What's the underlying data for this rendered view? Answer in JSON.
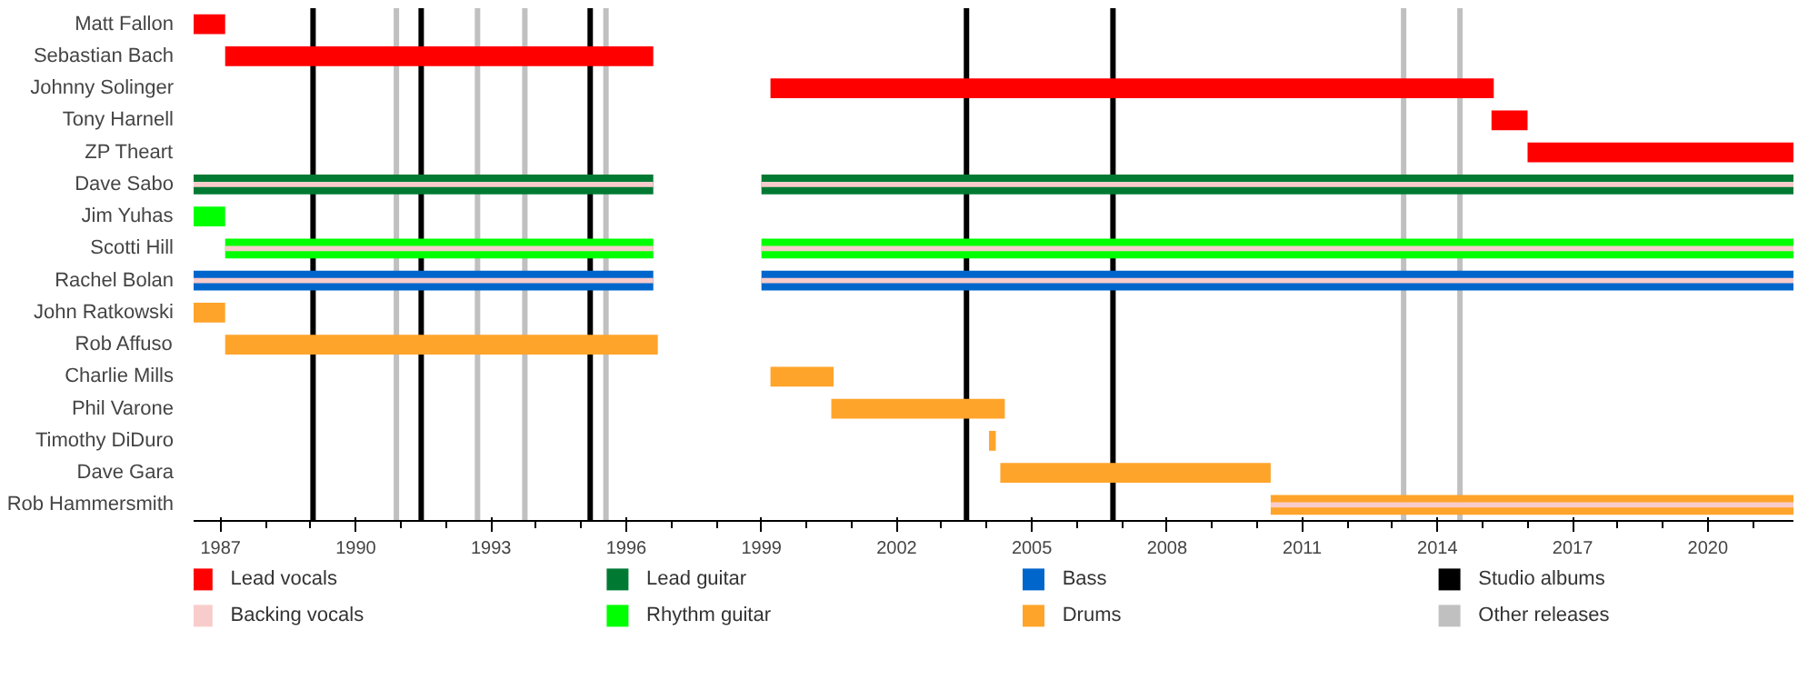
{
  "chart_data": {
    "type": "bar",
    "orientation": "horizontal",
    "categories": [
      "Matt Fallon",
      "Sebastian Bach",
      "Johnny Solinger",
      "Tony Harnell",
      "ZP Theart",
      "Dave Sabo",
      "Jim Yuhas",
      "Scotti Hill",
      "Rachel Bolan",
      "John Ratkowski",
      "Rob Affuso",
      "Charlie Mills",
      "Phil Varone",
      "Timothy DiDuro",
      "Dave Gara",
      "Rob Hammersmith"
    ],
    "xlim": [
      1986.4,
      2021.9
    ],
    "xticks": [
      1987,
      1990,
      1993,
      1996,
      1999,
      2002,
      2005,
      2008,
      2011,
      2014,
      2017,
      2020
    ],
    "legend": "bottom",
    "series": [
      {
        "name": "Lead vocals",
        "color": "#ff0000",
        "base": [
          1986.4,
          1987.1,
          1999.2,
          2015.2,
          2016.0,
          null,
          null,
          null,
          null,
          null,
          null,
          null,
          null,
          null,
          null,
          null
        ],
        "values": [
          0.7,
          9.5,
          16.05,
          0.8,
          5.9,
          null,
          null,
          null,
          null,
          null,
          null,
          null,
          null,
          null,
          null,
          null
        ]
      },
      {
        "name": "Backing vocals",
        "color": "#f9cccc",
        "base": [
          null,
          null,
          null,
          null,
          null,
          1986.4,
          null,
          1987.1,
          1986.4,
          null,
          null,
          null,
          null,
          null,
          null,
          2010.3
        ],
        "values": [
          null,
          null,
          null,
          null,
          null,
          10.2,
          null,
          9.5,
          10.2,
          null,
          null,
          null,
          null,
          null,
          null,
          11.6
        ]
      },
      {
        "color": "#f9cccc",
        "base": [
          null,
          null,
          null,
          null,
          null,
          1999.0,
          null,
          1999.0,
          1999.0,
          null,
          null,
          null,
          null,
          null,
          null,
          null
        ],
        "values": [
          null,
          null,
          null,
          null,
          null,
          22.9,
          null,
          22.9,
          22.9,
          null,
          null,
          null,
          null,
          null,
          null,
          null
        ]
      },
      {
        "name": "Lead guitar",
        "color": "#007a33",
        "base": [
          null,
          null,
          null,
          null,
          null,
          1986.4,
          null,
          null,
          null,
          null,
          null,
          null,
          null,
          null,
          null,
          null
        ],
        "values": [
          null,
          null,
          null,
          null,
          null,
          10.2,
          null,
          null,
          null,
          null,
          null,
          null,
          null,
          null,
          null,
          null
        ]
      },
      {
        "color": "#007a33",
        "base": [
          null,
          null,
          null,
          null,
          null,
          1999.0,
          null,
          null,
          null,
          null,
          null,
          null,
          null,
          null,
          null,
          null
        ],
        "values": [
          null,
          null,
          null,
          null,
          null,
          22.9,
          null,
          null,
          null,
          null,
          null,
          null,
          null,
          null,
          null,
          null
        ]
      },
      {
        "name": "Rhythm guitar",
        "color": "#00ff00",
        "base": [
          null,
          null,
          null,
          null,
          null,
          null,
          1986.4,
          1987.1,
          null,
          null,
          null,
          null,
          null,
          null,
          null,
          null
        ],
        "values": [
          null,
          null,
          null,
          null,
          null,
          null,
          0.7,
          9.5,
          null,
          null,
          null,
          null,
          null,
          null,
          null,
          null
        ]
      },
      {
        "color": "#00ff00",
        "base": [
          null,
          null,
          null,
          null,
          null,
          null,
          null,
          1999.0,
          null,
          null,
          null,
          null,
          null,
          null,
          null,
          null
        ],
        "values": [
          null,
          null,
          null,
          null,
          null,
          null,
          null,
          22.9,
          null,
          null,
          null,
          null,
          null,
          null,
          null,
          null
        ]
      },
      {
        "name": "Bass",
        "color": "#0066cc",
        "base": [
          null,
          null,
          null,
          null,
          null,
          null,
          null,
          null,
          1986.4,
          null,
          null,
          null,
          null,
          null,
          null,
          null
        ],
        "values": [
          null,
          null,
          null,
          null,
          null,
          null,
          null,
          null,
          10.2,
          null,
          null,
          null,
          null,
          null,
          null,
          null
        ]
      },
      {
        "color": "#0066cc",
        "base": [
          null,
          null,
          null,
          null,
          null,
          null,
          null,
          null,
          1999.0,
          null,
          null,
          null,
          null,
          null,
          null,
          null
        ],
        "values": [
          null,
          null,
          null,
          null,
          null,
          null,
          null,
          null,
          22.9,
          null,
          null,
          null,
          null,
          null,
          null,
          null
        ]
      },
      {
        "name": "Drums",
        "color": "#ffa42a",
        "base": [
          null,
          null,
          null,
          null,
          null,
          null,
          null,
          null,
          null,
          1986.4,
          1987.1,
          1999.2,
          2000.55,
          2004.05,
          2004.3,
          2010.3
        ],
        "values": [
          null,
          null,
          null,
          null,
          null,
          null,
          null,
          null,
          null,
          0.7,
          9.6,
          1.4,
          3.85,
          0.15,
          6.0,
          11.6
        ]
      }
    ],
    "ref_lines": [
      {
        "axis": "x",
        "value": 1989.05,
        "label": "Studio albums",
        "color": "#000000"
      },
      {
        "axis": "x",
        "value": 1991.45,
        "color": "#000000"
      },
      {
        "axis": "x",
        "value": 1995.2,
        "color": "#000000"
      },
      {
        "axis": "x",
        "value": 2003.55,
        "color": "#000000"
      },
      {
        "axis": "x",
        "value": 2006.8,
        "color": "#000000"
      },
      {
        "axis": "x",
        "value": 1990.9,
        "label": "Other releases",
        "color": "#c0c0c0"
      },
      {
        "axis": "x",
        "value": 1992.7,
        "color": "#c0c0c0"
      },
      {
        "axis": "x",
        "value": 1993.75,
        "color": "#c0c0c0"
      },
      {
        "axis": "x",
        "value": 1995.55,
        "color": "#c0c0c0"
      },
      {
        "axis": "x",
        "value": 2013.25,
        "color": "#c0c0c0"
      },
      {
        "axis": "x",
        "value": 2014.5,
        "color": "#c0c0c0"
      }
    ]
  }
}
